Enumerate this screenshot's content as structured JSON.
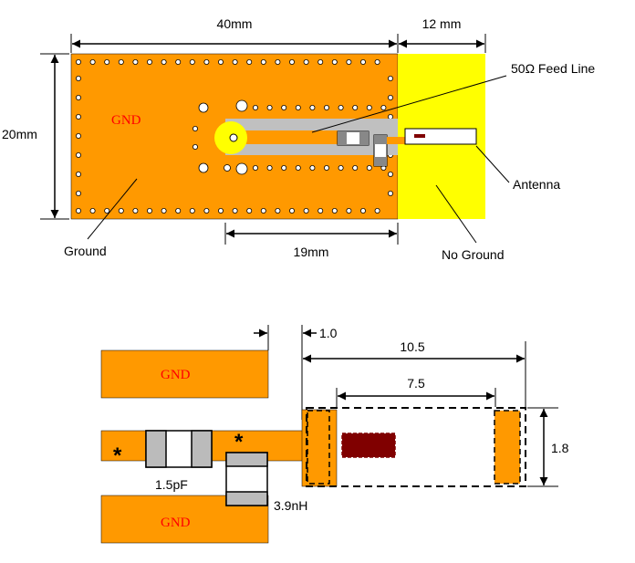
{
  "colors": {
    "copper": "#FF9900",
    "no_ground": "#FFFF00",
    "trace": "#C0C0C0",
    "via": "#FFFFFF",
    "gnd_text": "#FF0000",
    "star": "#FF0000",
    "chip_dark": "#800000",
    "outline": "#000000"
  },
  "top_diagram": {
    "dim_width": "40mm",
    "dim_right": "12 mm",
    "dim_height": "20mm",
    "dim_bottom": "19mm",
    "gnd_label": "GND",
    "feed_line_label": "50Ω Feed Line",
    "antenna_label": "Antenna",
    "ground_label": "Ground",
    "no_ground_label": "No Ground"
  },
  "bottom_diagram": {
    "dim_offset": "1.0",
    "dim_total": "10.5",
    "dim_inner": "7.5",
    "dim_height": "1.8",
    "gnd_top_label": "GND",
    "gnd_bottom_label": "GND",
    "star_left": "*",
    "star_right": "*",
    "cap_label": "1.5pF",
    "ind_label": "3.9nH"
  }
}
